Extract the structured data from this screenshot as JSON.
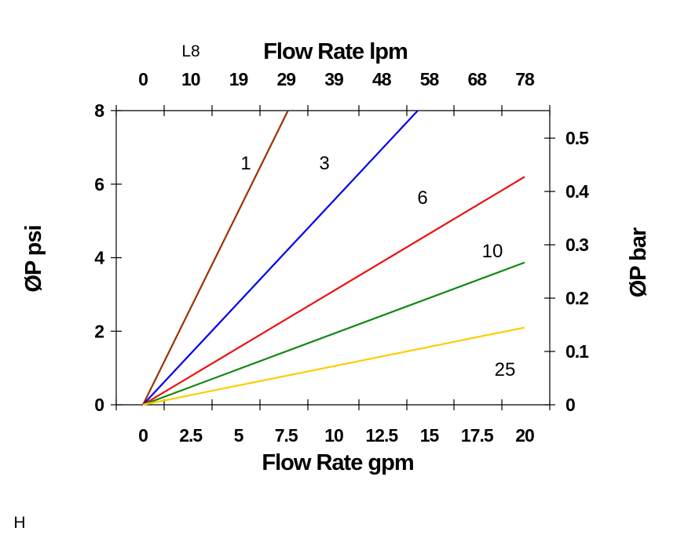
{
  "chart_data": {
    "type": "line",
    "top_left_label": "L8",
    "bottom_left_label": "H",
    "x_bottom": {
      "label": "Flow Rate gpm",
      "range": [
        0,
        20
      ],
      "tick_labels": [
        "0",
        "2.5",
        "5",
        "7.5",
        "10",
        "12.5",
        "15",
        "17.5",
        "20"
      ],
      "tick_values": [
        0,
        2.5,
        5,
        7.5,
        10,
        12.5,
        15,
        17.5,
        20
      ]
    },
    "x_top": {
      "label": "Flow Rate lpm",
      "tick_labels": [
        "0",
        "10",
        "19",
        "29",
        "39",
        "48",
        "58",
        "68",
        "78"
      ]
    },
    "y_left": {
      "label": "ØP psi",
      "range": [
        0,
        8
      ],
      "tick_labels": [
        "0",
        "2",
        "4",
        "6",
        "8"
      ],
      "tick_values": [
        0,
        2,
        4,
        6,
        8
      ]
    },
    "y_right": {
      "label": "ØP bar",
      "range": [
        0,
        0.5516
      ],
      "tick_labels": [
        "0",
        "0.1",
        "0.2",
        "0.3",
        "0.4",
        "0.5"
      ],
      "tick_values": [
        0,
        0.1,
        0.2,
        0.3,
        0.4,
        0.5
      ]
    },
    "grid": false,
    "series": [
      {
        "name": "1",
        "color": "#993300",
        "x": [
          0,
          7.6
        ],
        "y": [
          0,
          8
        ]
      },
      {
        "name": "3",
        "color": "#0000ee",
        "x": [
          0,
          14.4
        ],
        "y": [
          0,
          8
        ]
      },
      {
        "name": "6",
        "color": "#ee1111",
        "x": [
          0,
          20
        ],
        "y": [
          0,
          6.2
        ]
      },
      {
        "name": "10",
        "color": "#118811",
        "x": [
          0,
          20
        ],
        "y": [
          0,
          3.87
        ]
      },
      {
        "name": "25",
        "color": "#ffcc00",
        "x": [
          0,
          20
        ],
        "y": [
          0,
          2.1
        ]
      }
    ]
  }
}
